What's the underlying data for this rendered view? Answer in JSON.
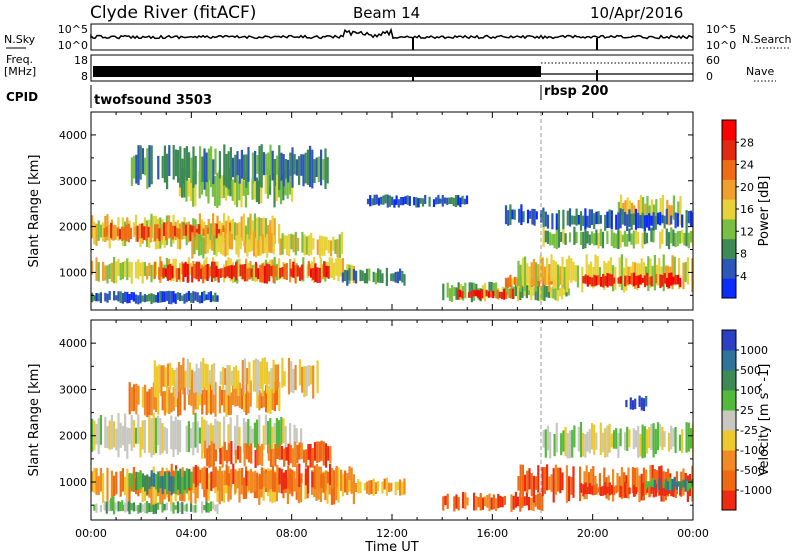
{
  "header": {
    "station": "Clyde River (fitACF)",
    "beam": "Beam 14",
    "date": "10/Apr/2016"
  },
  "status_panels": {
    "nsky_label": "N.Sky",
    "nsky_ticks": [
      "10^5",
      "10^0"
    ],
    "nsearch_label": "N.Search",
    "nsearch_ticks": [
      "10^5",
      "10^0"
    ],
    "freq_label_1": "Freq.",
    "freq_label_2": "[MHz]",
    "freq_ticks": [
      "18",
      "8"
    ],
    "nave_label": "Nave",
    "nave_ticks": [
      "60",
      "0"
    ],
    "cpid_label": "CPID",
    "cpid_segments": [
      {
        "name": "twofsound 3503",
        "start_hour": 0,
        "end_hour": 18
      },
      {
        "name": "rbsp 200",
        "start_hour": 18,
        "end_hour": 24
      }
    ]
  },
  "colors": {
    "power": [
      "#0b2bff",
      "#2c56b8",
      "#3d8a55",
      "#79c042",
      "#e8d23a",
      "#f0a02a",
      "#ee6d14",
      "#e22a12",
      "#ff0000"
    ],
    "velocity": [
      "#2a3fc4",
      "#30739a",
      "#3d8a55",
      "#52ba3a",
      "#c8c8c0",
      "#eec92d",
      "#f08a22",
      "#f06a12",
      "#ee2a10"
    ]
  },
  "chart_data": [
    {
      "type": "heatmap",
      "title": "",
      "quantity": "Power",
      "xlabel": "Time UT",
      "ylabel": "Slant Range [km]",
      "xlim_hours": [
        0,
        24
      ],
      "x_ticks": [
        "00:00",
        "04:00",
        "08:00",
        "12:00",
        "16:00",
        "20:00",
        "00:00"
      ],
      "ylim": [
        180,
        4500
      ],
      "y_ticks": [
        1000,
        2000,
        3000,
        4000
      ],
      "colorbar": {
        "label": "Power [dB]",
        "range": [
          0,
          32
        ],
        "ticks": [
          "4",
          "8",
          "12",
          "16",
          "20",
          "24",
          "28"
        ]
      },
      "features": [
        {
          "t0": 0.0,
          "t1": 5.0,
          "r0": 300,
          "r1": 600,
          "v": 4
        },
        {
          "t0": 0.0,
          "t1": 7.5,
          "r0": 1500,
          "r1": 2300,
          "v": 15
        },
        {
          "t0": 0.5,
          "t1": 5.5,
          "r0": 1650,
          "r1": 2100,
          "v": 22
        },
        {
          "t0": 3.5,
          "t1": 8.0,
          "r0": 2400,
          "r1": 3300,
          "v": 10
        },
        {
          "t0": 1.5,
          "t1": 9.5,
          "r0": 2800,
          "r1": 3800,
          "v": 6
        },
        {
          "t0": 0.0,
          "t1": 10.5,
          "r0": 750,
          "r1": 1350,
          "v": 17
        },
        {
          "t0": 2.5,
          "t1": 9.5,
          "r0": 750,
          "r1": 1250,
          "v": 28
        },
        {
          "t0": 4.0,
          "t1": 10.0,
          "r0": 1300,
          "r1": 1900,
          "v": 14
        },
        {
          "t0": 10.0,
          "t1": 12.5,
          "r0": 700,
          "r1": 1100,
          "v": 9
        },
        {
          "t0": 11.0,
          "t1": 15.0,
          "r0": 2400,
          "r1": 2700,
          "v": 5
        },
        {
          "t0": 14.0,
          "t1": 19.0,
          "r0": 350,
          "r1": 800,
          "v": 12
        },
        {
          "t0": 14.5,
          "t1": 16.8,
          "r0": 400,
          "r1": 650,
          "v": 27
        },
        {
          "t0": 16.5,
          "t1": 19.0,
          "r0": 650,
          "r1": 950,
          "v": 20
        },
        {
          "t0": 17.0,
          "t1": 24.0,
          "r0": 550,
          "r1": 1400,
          "v": 14
        },
        {
          "t0": 19.5,
          "t1": 23.5,
          "r0": 650,
          "r1": 1000,
          "v": 27
        },
        {
          "t0": 18.0,
          "t1": 24.0,
          "r0": 1500,
          "r1": 2000,
          "v": 12
        },
        {
          "t0": 21.0,
          "t1": 23.5,
          "r0": 2000,
          "r1": 2700,
          "v": 14
        },
        {
          "t0": 16.5,
          "t1": 18.0,
          "r0": 2000,
          "r1": 2500,
          "v": 5
        },
        {
          "t0": 18.0,
          "t1": 24.0,
          "r0": 1900,
          "r1": 2400,
          "v": 5
        }
      ]
    },
    {
      "type": "heatmap",
      "title": "",
      "quantity": "Velocity",
      "xlabel": "Time UT",
      "ylabel": "Slant Range [km]",
      "xlim_hours": [
        0,
        24
      ],
      "x_ticks": [
        "00:00",
        "04:00",
        "08:00",
        "12:00",
        "16:00",
        "20:00",
        "00:00"
      ],
      "ylim": [
        180,
        4500
      ],
      "y_ticks": [
        1000,
        2000,
        3000,
        4000
      ],
      "colorbar": {
        "label": "Velocity [m s^-1]",
        "ticks": [
          "1000",
          "500",
          "100",
          "25",
          "-25",
          "-100",
          "-500",
          "-1000"
        ]
      },
      "features": [
        {
          "t0": 0.0,
          "t1": 5.0,
          "r0": 300,
          "r1": 600,
          "v": 3
        },
        {
          "t0": 0.0,
          "t1": 8.5,
          "r0": 1500,
          "r1": 2500,
          "v": 4
        },
        {
          "t0": 1.5,
          "t1": 7.5,
          "r0": 2400,
          "r1": 3200,
          "v": 6
        },
        {
          "t0": 2.5,
          "t1": 9.0,
          "r0": 2800,
          "r1": 3700,
          "v": 5
        },
        {
          "t0": 0.0,
          "t1": 10.5,
          "r0": 500,
          "r1": 1350,
          "v": 6
        },
        {
          "t0": 3.0,
          "t1": 10.0,
          "r0": 750,
          "r1": 1400,
          "v": 7
        },
        {
          "t0": 1.5,
          "t1": 4.0,
          "r0": 700,
          "r1": 1300,
          "v": 2
        },
        {
          "t0": 4.5,
          "t1": 9.5,
          "r0": 1300,
          "r1": 1900,
          "v": 7
        },
        {
          "t0": 0.5,
          "t1": 1.5,
          "r0": 300,
          "r1": 700,
          "v": 3
        },
        {
          "t0": 14.0,
          "t1": 18.0,
          "r0": 350,
          "r1": 800,
          "v": 7
        },
        {
          "t0": 10.0,
          "t1": 12.5,
          "r0": 700,
          "r1": 1100,
          "v": 6
        },
        {
          "t0": 17.0,
          "t1": 24.0,
          "r0": 550,
          "r1": 1400,
          "v": 7
        },
        {
          "t0": 19.5,
          "t1": 23.5,
          "r0": 650,
          "r1": 1000,
          "v": 8
        },
        {
          "t0": 18.0,
          "t1": 24.0,
          "r0": 1500,
          "r1": 2300,
          "v": 4
        },
        {
          "t0": 21.3,
          "t1": 22.2,
          "r0": 2500,
          "r1": 2900,
          "v": 0
        },
        {
          "t0": 22.0,
          "t1": 24.0,
          "r0": 800,
          "r1": 1100,
          "v": 2
        }
      ]
    }
  ]
}
